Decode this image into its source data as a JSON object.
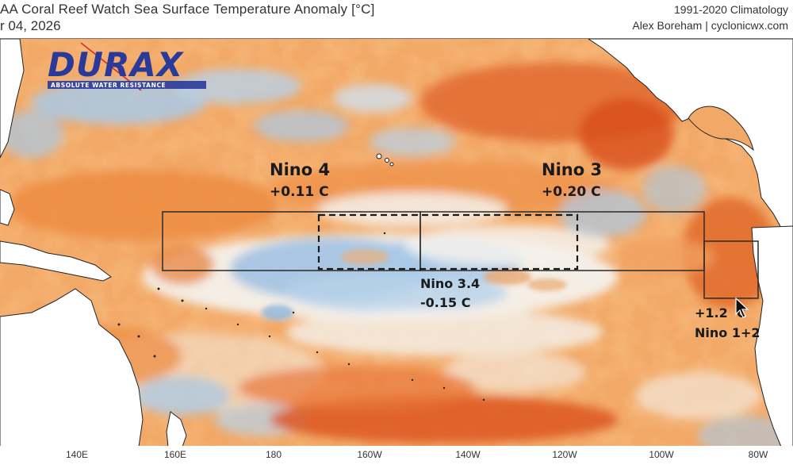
{
  "header": {
    "title": "AA Coral Reef Watch Sea Surface Temperature Anomaly [°C]",
    "date": "r 04, 2026",
    "climatology": "1991-2020 Climatology",
    "credit": "Alex Boreham | cyclonicwx.com"
  },
  "logo": {
    "brand": "DURAX",
    "tagline": "ABSOLUTE WATER RESISTANCE"
  },
  "regions": {
    "nino4": {
      "name": "Nino 4",
      "value": "+0.11 C"
    },
    "nino3": {
      "name": "Nino 3",
      "value": "+0.20 C"
    },
    "nino34": {
      "name": "Nino 3.4",
      "value": "-0.15 C"
    },
    "nino12": {
      "name": "Nino 1+2",
      "value": "+1.2  C"
    }
  },
  "axis": {
    "ticks": [
      "140E",
      "160E",
      "180",
      "160W",
      "140W",
      "120W",
      "100W",
      "80W"
    ]
  },
  "colors": {
    "warm_light": "#f6c08a",
    "warm": "#ee8a3c",
    "warm_deep": "#d8521e",
    "neutral": "#f4f1ec",
    "cool": "#a9c9e6",
    "cool_deep": "#6f9fd0",
    "land": "#ffffff"
  }
}
